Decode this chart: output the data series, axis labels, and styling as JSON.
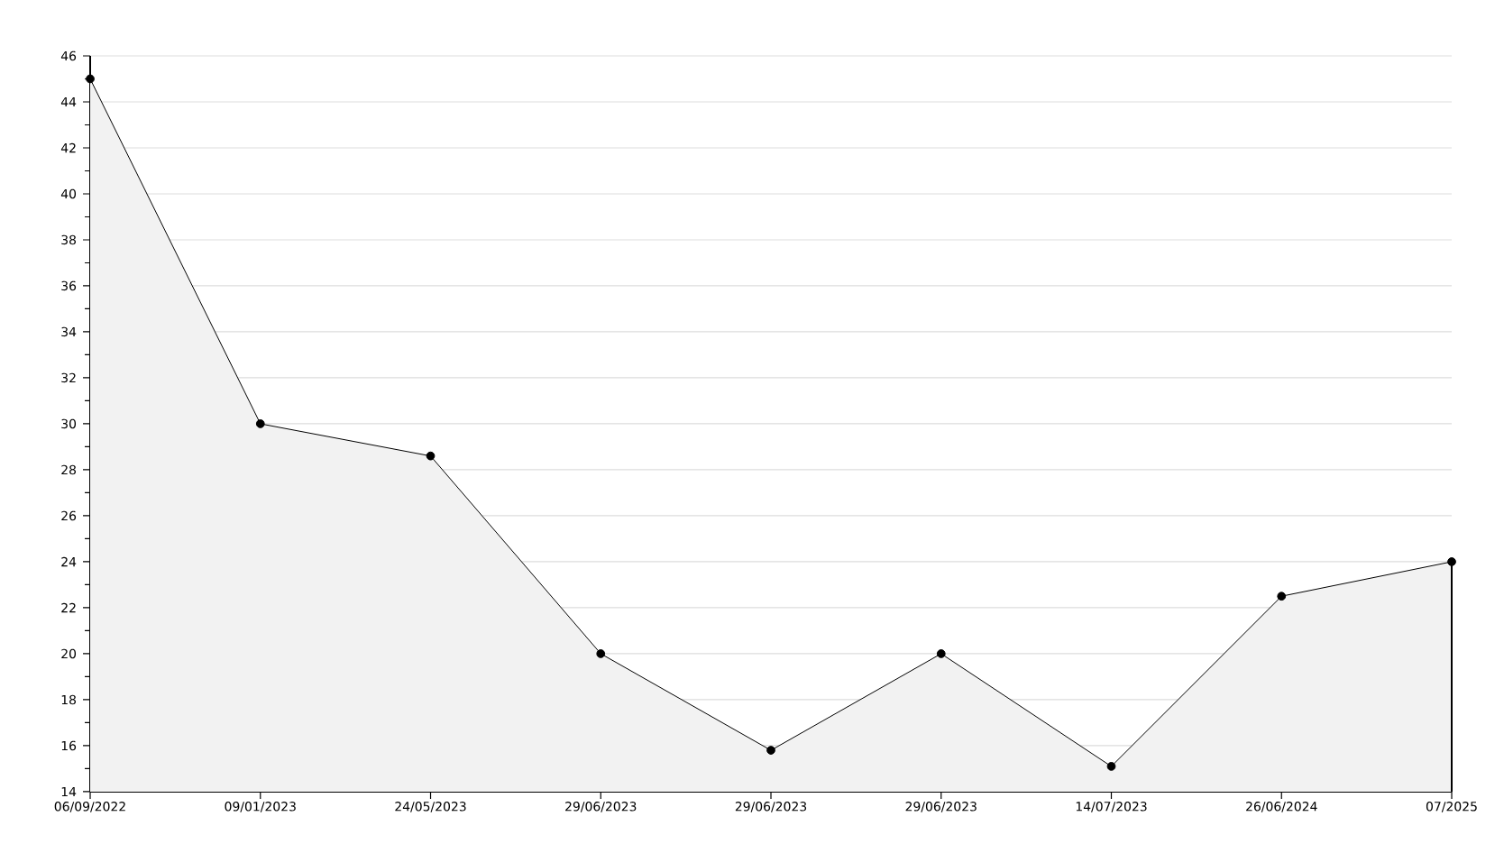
{
  "chart_data": {
    "type": "area",
    "categories": [
      "06/09/2022",
      "09/01/2023",
      "24/05/2023",
      "29/06/2023",
      "29/06/2023",
      "29/06/2023",
      "14/07/2023",
      "26/06/2024",
      "07/2025"
    ],
    "series": [
      {
        "color": "#f2f2f2",
        "values": [
          45,
          30,
          28.6,
          20,
          15.8,
          20,
          15.1,
          22.5,
          24
        ]
      }
    ],
    "ylim": [
      14,
      46
    ],
    "yticks": [
      14,
      16,
      18,
      20,
      22,
      24,
      26,
      28,
      30,
      32,
      34,
      36,
      38,
      40,
      42,
      44,
      46
    ],
    "grid": "y",
    "marker": "circle",
    "line_style": "solid"
  }
}
